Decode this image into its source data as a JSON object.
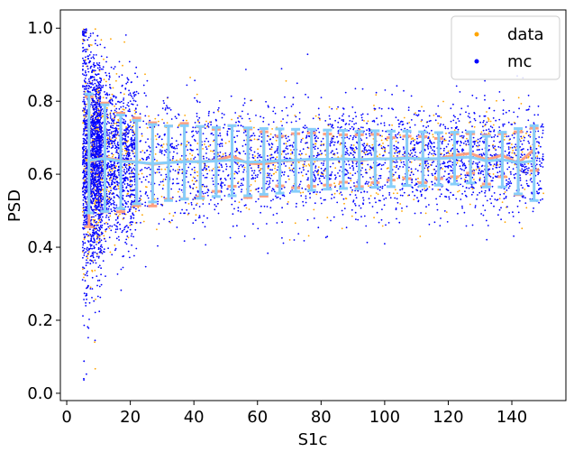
{
  "chart_data": {
    "type": "scatter",
    "title": "",
    "xlabel": "S1c",
    "ylabel": "PSD",
    "xlim": [
      -2,
      157
    ],
    "ylim": [
      -0.02,
      1.05
    ],
    "xticks": [
      0,
      20,
      40,
      60,
      80,
      100,
      120,
      140
    ],
    "xtick_labels": [
      "0",
      "20",
      "40",
      "60",
      "80",
      "100",
      "120",
      "140"
    ],
    "yticks": [
      0.0,
      0.2,
      0.4,
      0.6,
      0.8,
      1.0
    ],
    "ytick_labels": [
      "0.0",
      "0.2",
      "0.4",
      "0.6",
      "0.8",
      "1.0"
    ],
    "grid": false,
    "legend_position": "top-right",
    "colors": {
      "data": "#ffa500",
      "mc": "#0000ff",
      "data_band": "#ff9f7f",
      "mc_band": "#87cefa"
    },
    "series": [
      {
        "name": "data",
        "marker": "point",
        "note_type": "scatter",
        "x_range": [
          5,
          150
        ],
        "y_center": 0.64
      },
      {
        "name": "mc",
        "marker": "point",
        "note_type": "scatter",
        "x_range": [
          5,
          150
        ],
        "y_center": 0.64
      }
    ],
    "binned": {
      "x": [
        7,
        12,
        17,
        22,
        27,
        32,
        37,
        42,
        47,
        52,
        57,
        62,
        67,
        72,
        77,
        82,
        87,
        92,
        97,
        102,
        107,
        112,
        117,
        122,
        127,
        132,
        137,
        142,
        147
      ],
      "data_mean": [
        0.634,
        0.646,
        0.637,
        0.634,
        0.627,
        0.632,
        0.636,
        0.634,
        0.638,
        0.65,
        0.63,
        0.628,
        0.636,
        0.637,
        0.64,
        0.64,
        0.643,
        0.637,
        0.643,
        0.642,
        0.646,
        0.64,
        0.643,
        0.652,
        0.657,
        0.64,
        0.652,
        0.63,
        0.668
      ],
      "data_low": [
        0.456,
        0.497,
        0.497,
        0.514,
        0.513,
        0.532,
        0.533,
        0.538,
        0.553,
        0.567,
        0.536,
        0.54,
        0.568,
        0.563,
        0.567,
        0.57,
        0.578,
        0.566,
        0.577,
        0.584,
        0.588,
        0.577,
        0.588,
        0.593,
        0.603,
        0.573,
        0.593,
        0.544,
        0.61
      ],
      "data_high": [
        0.812,
        0.795,
        0.767,
        0.754,
        0.741,
        0.732,
        0.739,
        0.73,
        0.723,
        0.733,
        0.724,
        0.716,
        0.704,
        0.711,
        0.713,
        0.71,
        0.708,
        0.708,
        0.709,
        0.7,
        0.704,
        0.703,
        0.698,
        0.711,
        0.711,
        0.707,
        0.711,
        0.716,
        0.726
      ],
      "mc_mean": [
        0.638,
        0.643,
        0.635,
        0.633,
        0.629,
        0.632,
        0.634,
        0.634,
        0.636,
        0.639,
        0.633,
        0.634,
        0.637,
        0.639,
        0.641,
        0.641,
        0.642,
        0.64,
        0.642,
        0.642,
        0.644,
        0.642,
        0.643,
        0.645,
        0.647,
        0.636,
        0.64,
        0.632,
        0.636
      ],
      "mc_low": [
        0.494,
        0.498,
        0.506,
        0.519,
        0.524,
        0.528,
        0.532,
        0.534,
        0.539,
        0.541,
        0.541,
        0.545,
        0.548,
        0.553,
        0.556,
        0.559,
        0.561,
        0.56,
        0.564,
        0.566,
        0.569,
        0.568,
        0.57,
        0.573,
        0.576,
        0.565,
        0.565,
        0.546,
        0.528
      ],
      "mc_high": [
        0.82,
        0.79,
        0.762,
        0.747,
        0.736,
        0.732,
        0.733,
        0.731,
        0.728,
        0.733,
        0.727,
        0.725,
        0.724,
        0.723,
        0.723,
        0.721,
        0.72,
        0.717,
        0.719,
        0.718,
        0.718,
        0.716,
        0.714,
        0.715,
        0.716,
        0.704,
        0.715,
        0.725,
        0.733
      ]
    }
  }
}
